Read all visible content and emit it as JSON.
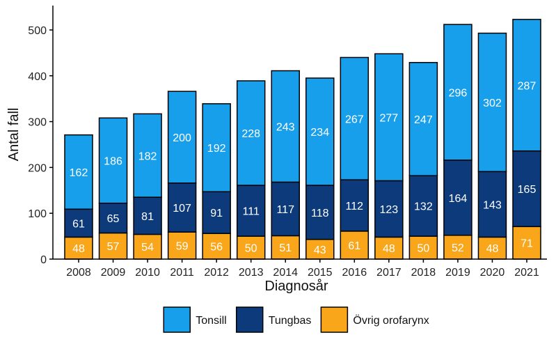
{
  "chart_data": {
    "type": "bar",
    "stacked": true,
    "title": "",
    "xlabel": "Diagnosår",
    "ylabel": "Antal fall",
    "ylim": [
      0,
      540
    ],
    "yticks": [
      0,
      100,
      200,
      300,
      400,
      500
    ],
    "grid": false,
    "legend_position": "bottom",
    "categories": [
      "2008",
      "2009",
      "2010",
      "2011",
      "2012",
      "2013",
      "2014",
      "2015",
      "2016",
      "2017",
      "2018",
      "2019",
      "2020",
      "2021"
    ],
    "series": [
      {
        "name": "Övrig orofarynx",
        "color": "#FAA61A",
        "label_color": "#ffffff",
        "values": [
          48,
          57,
          54,
          59,
          56,
          50,
          51,
          43,
          61,
          48,
          50,
          52,
          48,
          71
        ]
      },
      {
        "name": "Tungbas",
        "color": "#0D3A7A",
        "label_color": "#ffffff",
        "values": [
          61,
          65,
          81,
          107,
          91,
          111,
          117,
          118,
          112,
          123,
          132,
          164,
          143,
          165
        ]
      },
      {
        "name": "Tonsill",
        "color": "#189FEB",
        "label_color": "#ffffff",
        "values": [
          162,
          186,
          182,
          200,
          192,
          228,
          243,
          234,
          267,
          277,
          247,
          296,
          302,
          287
        ]
      }
    ],
    "legend_order": [
      "Tonsill",
      "Tungbas",
      "Övrig orofarynx"
    ]
  }
}
